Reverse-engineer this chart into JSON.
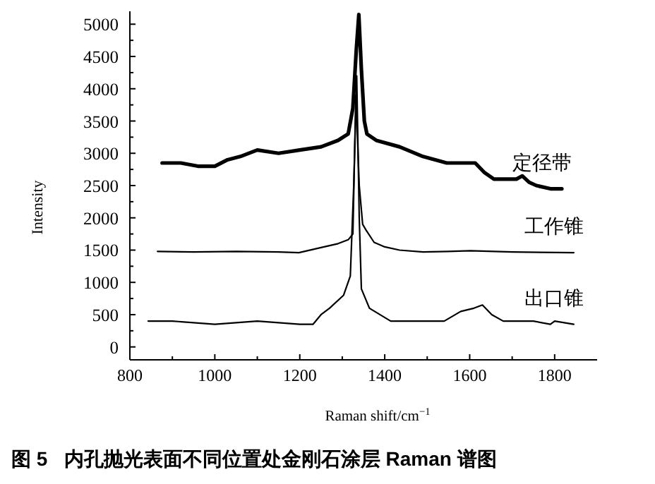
{
  "chart_data": {
    "type": "line",
    "title": "图 5   内孔抛光表面不同位置处金刚石涂层 Raman 谱图",
    "xlabel": "Raman shift/cm$^{−1}$",
    "ylabel": "Intensity",
    "xlim": [
      800,
      1900
    ],
    "ylim": [
      -200,
      5200
    ],
    "xticks": [
      800,
      {
        "value": 900,
        "label": null
      },
      1000,
      {
        "value": 1100,
        "label": null
      },
      1200,
      {
        "value": 1300,
        "label": null
      },
      1400,
      {
        "value": 1500,
        "label": null
      },
      1600,
      {
        "value": 1700,
        "label": null
      },
      1800
    ],
    "yticks": [
      0,
      {
        "value": 250,
        "label": null
      },
      500,
      {
        "value": 750,
        "label": null
      },
      1000,
      {
        "value": 1250,
        "label": null
      },
      1500,
      {
        "value": 1750,
        "label": null
      },
      2000,
      {
        "value": 2250,
        "label": null
      },
      2500,
      {
        "value": 2750,
        "label": null
      },
      3000,
      {
        "value": 3250,
        "label": null
      },
      3500,
      {
        "value": 3750,
        "label": null
      },
      4000,
      {
        "value": 4250,
        "label": null
      },
      4500,
      {
        "value": 4750,
        "label": null
      },
      5000
    ],
    "grid": false,
    "series": [
      {
        "name": "定径带",
        "color": "#000000",
        "x": [
          876,
          920,
          960,
          1000,
          1030,
          1060,
          1100,
          1150,
          1200,
          1250,
          1290,
          1314,
          1325,
          1333,
          1339,
          1345,
          1352,
          1358,
          1380,
          1435,
          1490,
          1546,
          1590,
          1613,
          1635,
          1657,
          1690,
          1710,
          1724,
          1740,
          1757,
          1790,
          1817
        ],
        "values": [
          2850,
          2850,
          2800,
          2800,
          2900,
          2950,
          3050,
          3000,
          3050,
          3100,
          3200,
          3300,
          3700,
          4600,
          5150,
          4300,
          3500,
          3300,
          3200,
          3100,
          2950,
          2850,
          2850,
          2850,
          2700,
          2600,
          2600,
          2600,
          2650,
          2550,
          2500,
          2450,
          2450
        ]
      },
      {
        "name": "工作锥",
        "color": "#000000",
        "x": [
          865,
          950,
          1050,
          1150,
          1198,
          1250,
          1290,
          1314,
          1325,
          1332,
          1340,
          1348,
          1356,
          1375,
          1400,
          1435,
          1490,
          1550,
          1601,
          1700,
          1845
        ],
        "values": [
          1480,
          1470,
          1480,
          1470,
          1460,
          1540,
          1600,
          1660,
          1750,
          3900,
          2500,
          1900,
          1810,
          1620,
          1550,
          1500,
          1470,
          1480,
          1490,
          1470,
          1460
        ]
      },
      {
        "name": "出口锥",
        "color": "#000000",
        "x": [
          843,
          900,
          1000,
          1100,
          1200,
          1231,
          1250,
          1270,
          1303,
          1319,
          1327,
          1334,
          1340,
          1345,
          1364,
          1414,
          1490,
          1540,
          1579,
          1610,
          1630,
          1652,
          1679,
          1750,
          1790,
          1800,
          1845
        ],
        "values": [
          400,
          400,
          350,
          400,
          350,
          350,
          500,
          600,
          800,
          1100,
          2500,
          4200,
          2000,
          900,
          600,
          400,
          400,
          400,
          550,
          600,
          650,
          500,
          400,
          400,
          350,
          400,
          350
        ]
      }
    ]
  }
}
